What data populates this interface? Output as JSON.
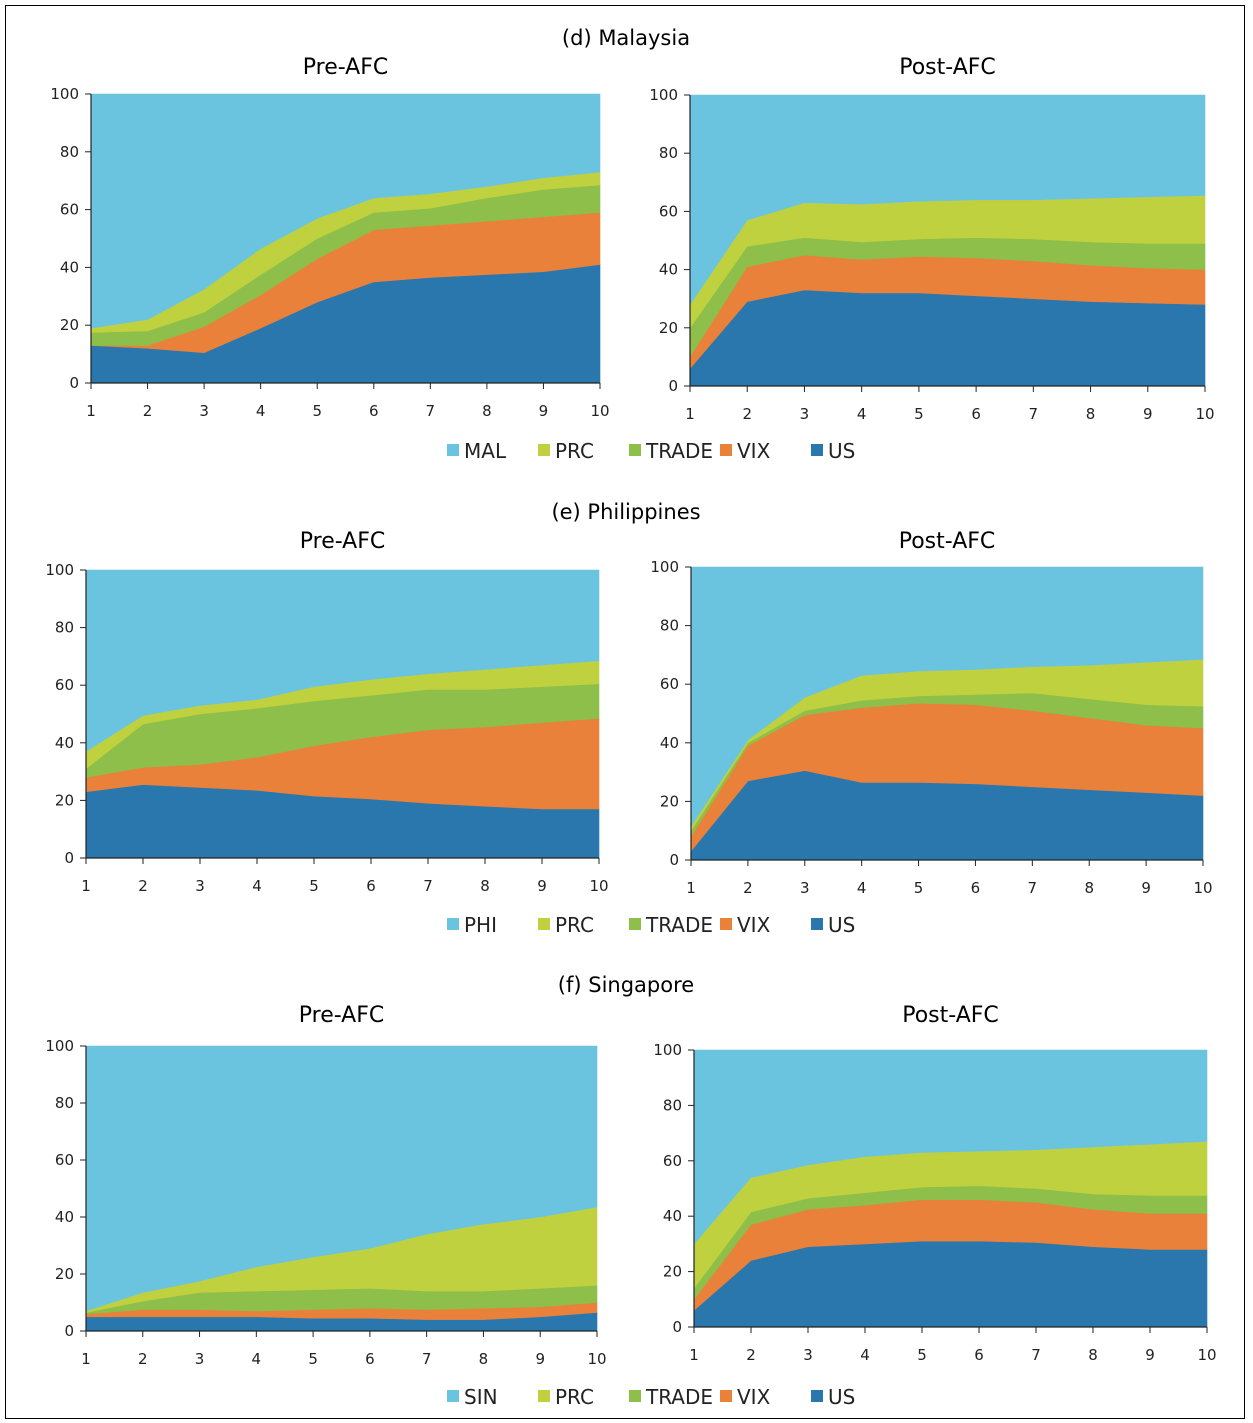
{
  "chart_data": [
    {
      "type": "area",
      "stacked": true,
      "group_title": "(d) Malaysia",
      "title": "Pre-AFC",
      "x": [
        1,
        2,
        3,
        4,
        5,
        6,
        7,
        8,
        9,
        10
      ],
      "ylim": [
        0,
        100
      ],
      "yticks": [
        0,
        20,
        40,
        60,
        80,
        100
      ],
      "grid": false,
      "legend": "bottom",
      "series": [
        {
          "name": "US",
          "color": "#2a77ae",
          "values": [
            13,
            12,
            10.5,
            19,
            28,
            35,
            36.5,
            37.5,
            38.5,
            41
          ]
        },
        {
          "name": "VIX",
          "color": "#ea813a",
          "values": [
            0,
            1,
            9,
            11.5,
            15,
            18,
            18,
            18.5,
            19,
            18
          ]
        },
        {
          "name": "TRADE",
          "color": "#8dbf4a",
          "values": [
            4.5,
            5,
            5,
            7,
            7,
            6,
            6,
            8,
            9.5,
            9.5
          ]
        },
        {
          "name": "PRC",
          "color": "#bfd13e",
          "values": [
            1.5,
            4,
            8,
            9,
            7,
            5,
            5,
            4,
            4,
            4.5
          ]
        },
        {
          "name": "MAL",
          "color": "#6ac4e0",
          "values": [
            81,
            78,
            67.5,
            53.5,
            43,
            36,
            34.5,
            32,
            29,
            27
          ]
        }
      ]
    },
    {
      "type": "area",
      "stacked": true,
      "group_title": "(d) Malaysia",
      "title": "Post-AFC",
      "x": [
        1,
        2,
        3,
        4,
        5,
        6,
        7,
        8,
        9,
        10
      ],
      "ylim": [
        0,
        100
      ],
      "yticks": [
        0,
        20,
        40,
        60,
        80,
        100
      ],
      "grid": false,
      "legend": "bottom",
      "series": [
        {
          "name": "US",
          "color": "#2a77ae",
          "values": [
            6,
            29,
            33,
            32,
            32,
            31,
            30,
            29,
            28.5,
            28
          ]
        },
        {
          "name": "VIX",
          "color": "#ea813a",
          "values": [
            4,
            12,
            12,
            11.5,
            12.5,
            13,
            13,
            12.5,
            12,
            12
          ]
        },
        {
          "name": "TRADE",
          "color": "#8dbf4a",
          "values": [
            10,
            7,
            6,
            6,
            6,
            7,
            7.5,
            8,
            8.5,
            9
          ]
        },
        {
          "name": "PRC",
          "color": "#bfd13e",
          "values": [
            8,
            9,
            12,
            13,
            13,
            13,
            13.5,
            15,
            16,
            16.5
          ]
        },
        {
          "name": "MAL",
          "color": "#6ac4e0",
          "values": [
            72,
            43,
            37,
            37.5,
            36.5,
            36,
            36,
            35.5,
            35,
            34.5
          ]
        }
      ]
    },
    {
      "type": "area",
      "stacked": true,
      "group_title": "(e) Philippines",
      "title": "Pre-AFC",
      "x": [
        1,
        2,
        3,
        4,
        5,
        6,
        7,
        8,
        9,
        10
      ],
      "ylim": [
        0,
        100
      ],
      "yticks": [
        0,
        20,
        40,
        60,
        80,
        100
      ],
      "grid": false,
      "legend": "bottom",
      "series": [
        {
          "name": "US",
          "color": "#2a77ae",
          "values": [
            23,
            25.5,
            24.5,
            23.5,
            21.5,
            20.5,
            19,
            18,
            17,
            17
          ]
        },
        {
          "name": "VIX",
          "color": "#ea813a",
          "values": [
            5,
            6,
            8,
            11.5,
            17.5,
            21.5,
            25.5,
            27.5,
            30,
            31.5
          ]
        },
        {
          "name": "TRADE",
          "color": "#8dbf4a",
          "values": [
            3,
            15,
            17.5,
            17,
            15.5,
            14.5,
            14,
            13,
            12.5,
            12
          ]
        },
        {
          "name": "PRC",
          "color": "#bfd13e",
          "values": [
            6,
            3,
            3,
            3,
            5,
            5.5,
            5.5,
            7,
            7.5,
            8
          ]
        },
        {
          "name": "PHI",
          "color": "#6ac4e0",
          "values": [
            63,
            50.5,
            47,
            45,
            40.5,
            38,
            36,
            34.5,
            33,
            31.5
          ]
        }
      ]
    },
    {
      "type": "area",
      "stacked": true,
      "group_title": "(e) Philippines",
      "title": "Post-AFC",
      "x": [
        1,
        2,
        3,
        4,
        5,
        6,
        7,
        8,
        9,
        10
      ],
      "ylim": [
        0,
        100
      ],
      "yticks": [
        0,
        20,
        40,
        60,
        80,
        100
      ],
      "grid": false,
      "legend": "bottom",
      "series": [
        {
          "name": "US",
          "color": "#2a77ae",
          "values": [
            3,
            27,
            30.5,
            26.5,
            26.5,
            26,
            25,
            24,
            23,
            22
          ]
        },
        {
          "name": "VIX",
          "color": "#ea813a",
          "values": [
            5,
            12,
            19,
            25.5,
            27,
            27,
            26,
            24.5,
            23,
            23
          ]
        },
        {
          "name": "TRADE",
          "color": "#8dbf4a",
          "values": [
            2,
            1,
            1.5,
            2.5,
            2.5,
            3.5,
            6,
            6.5,
            7,
            7.5
          ]
        },
        {
          "name": "PRC",
          "color": "#bfd13e",
          "values": [
            1.5,
            1,
            4.5,
            8.5,
            8.5,
            8.5,
            9,
            11.5,
            14.5,
            16
          ]
        },
        {
          "name": "PHI",
          "color": "#6ac4e0",
          "values": [
            88.5,
            59,
            44.5,
            37,
            35.5,
            35,
            34,
            33.5,
            32.5,
            31.5
          ]
        }
      ]
    },
    {
      "type": "area",
      "stacked": true,
      "group_title": "(f) Singapore",
      "title": "Pre-AFC",
      "x": [
        1,
        2,
        3,
        4,
        5,
        6,
        7,
        8,
        9,
        10
      ],
      "ylim": [
        0,
        100
      ],
      "yticks": [
        0,
        20,
        40,
        60,
        80,
        100
      ],
      "grid": false,
      "legend": "bottom",
      "series": [
        {
          "name": "US",
          "color": "#2a77ae",
          "values": [
            5,
            5,
            5,
            5,
            4.5,
            4.5,
            4,
            4,
            5,
            6.5
          ]
        },
        {
          "name": "VIX",
          "color": "#ea813a",
          "values": [
            1,
            2.5,
            2.5,
            2,
            3,
            3.5,
            3.5,
            4,
            3.5,
            3.5
          ]
        },
        {
          "name": "TRADE",
          "color": "#8dbf4a",
          "values": [
            0.5,
            3,
            6,
            7,
            7,
            7,
            6.5,
            6,
            6.5,
            6
          ]
        },
        {
          "name": "PRC",
          "color": "#bfd13e",
          "values": [
            0.5,
            3,
            4,
            8.5,
            11.5,
            14,
            20,
            23.5,
            25,
            27.5
          ]
        },
        {
          "name": "SIN",
          "color": "#6ac4e0",
          "values": [
            93,
            86.5,
            82.5,
            77.5,
            74,
            71,
            66,
            62.5,
            60,
            56.5
          ]
        }
      ]
    },
    {
      "type": "area",
      "stacked": true,
      "group_title": "(f) Singapore",
      "title": "Post-AFC",
      "x": [
        1,
        2,
        3,
        4,
        5,
        6,
        7,
        8,
        9,
        10
      ],
      "ylim": [
        0,
        100
      ],
      "yticks": [
        0,
        20,
        40,
        60,
        80,
        100
      ],
      "grid": false,
      "legend": "bottom",
      "series": [
        {
          "name": "US",
          "color": "#2a77ae",
          "values": [
            6,
            24,
            29,
            30,
            31,
            31,
            30.5,
            29,
            28,
            28
          ]
        },
        {
          "name": "VIX",
          "color": "#ea813a",
          "values": [
            4,
            13,
            13.5,
            14,
            15,
            15,
            14.5,
            13.5,
            13,
            13
          ]
        },
        {
          "name": "TRADE",
          "color": "#8dbf4a",
          "values": [
            4,
            4.5,
            4,
            4.5,
            4.5,
            5,
            5,
            5.5,
            6.5,
            6.5
          ]
        },
        {
          "name": "PRC",
          "color": "#bfd13e",
          "values": [
            16,
            12.5,
            12,
            13,
            12.5,
            12.5,
            14,
            17,
            18.5,
            19.5
          ]
        },
        {
          "name": "SIN",
          "color": "#6ac4e0",
          "values": [
            70,
            46,
            41.5,
            38.5,
            37,
            36.5,
            36,
            35,
            34,
            33
          ]
        }
      ]
    }
  ]
}
